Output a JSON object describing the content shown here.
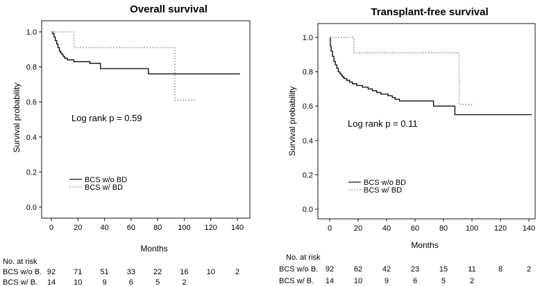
{
  "chart_data": [
    {
      "type": "line",
      "title": "Overall survival",
      "xlabel": "Months",
      "ylabel": "Survival probability",
      "xlim": [
        0,
        145
      ],
      "ylim": [
        0,
        1.0
      ],
      "xticks": [
        "0",
        "20",
        "40",
        "60",
        "80",
        "100",
        "120",
        "140"
      ],
      "yticks": [
        "0.0",
        "0.2",
        "0.4",
        "0.6",
        "0.8",
        "1.0"
      ],
      "annotation": "Log rank p = 0.59",
      "legend_position": "bottom-left",
      "series": [
        {
          "name": "BCS w/o BD",
          "style": "solid",
          "color": "#111111",
          "points": [
            [
              0,
              1.0
            ],
            [
              1,
              0.99
            ],
            [
              2,
              0.97
            ],
            [
              3,
              0.95
            ],
            [
              4,
              0.93
            ],
            [
              5,
              0.91
            ],
            [
              6,
              0.89
            ],
            [
              7,
              0.88
            ],
            [
              8,
              0.87
            ],
            [
              9,
              0.86
            ],
            [
              10,
              0.85
            ],
            [
              12,
              0.84
            ],
            [
              16,
              0.84
            ],
            [
              17,
              0.83
            ],
            [
              28,
              0.83
            ],
            [
              29,
              0.82
            ],
            [
              36,
              0.82
            ],
            [
              37,
              0.79
            ],
            [
              72,
              0.79
            ],
            [
              73,
              0.76
            ],
            [
              142,
              0.76
            ]
          ]
        },
        {
          "name": "BCS w/ BD",
          "style": "dotted",
          "color": "#999999",
          "points": [
            [
              0,
              1.0
            ],
            [
              16,
              1.0
            ],
            [
              17,
              0.91
            ],
            [
              92,
              0.91
            ],
            [
              93,
              0.61
            ],
            [
              109,
              0.61
            ]
          ]
        }
      ]
    },
    {
      "type": "line",
      "title": "Transplant-free survival",
      "xlabel": "Months",
      "ylabel": "Survival probability",
      "xlim": [
        0,
        145
      ],
      "ylim": [
        0,
        1.0
      ],
      "xticks": [
        "0",
        "20",
        "40",
        "60",
        "80",
        "100",
        "120",
        "140"
      ],
      "yticks": [
        "0.0",
        "0.2",
        "0.4",
        "0.6",
        "0.8",
        "1.0"
      ],
      "annotation": "Log rank p = 0.11",
      "legend_position": "bottom-left",
      "series": [
        {
          "name": "BCS w/o BD",
          "style": "solid",
          "color": "#111111",
          "points": [
            [
              0,
              1.0
            ],
            [
              0.5,
              0.95
            ],
            [
              1,
              0.92
            ],
            [
              2,
              0.89
            ],
            [
              3,
              0.86
            ],
            [
              4,
              0.84
            ],
            [
              5,
              0.82
            ],
            [
              6,
              0.8
            ],
            [
              7,
              0.79
            ],
            [
              8,
              0.78
            ],
            [
              9,
              0.77
            ],
            [
              10,
              0.76
            ],
            [
              12,
              0.75
            ],
            [
              14,
              0.74
            ],
            [
              16,
              0.73
            ],
            [
              19,
              0.72
            ],
            [
              23,
              0.71
            ],
            [
              27,
              0.7
            ],
            [
              30,
              0.69
            ],
            [
              33,
              0.68
            ],
            [
              36,
              0.67
            ],
            [
              40,
              0.67
            ],
            [
              41,
              0.66
            ],
            [
              44,
              0.65
            ],
            [
              46,
              0.64
            ],
            [
              48,
              0.64
            ],
            [
              49,
              0.63
            ],
            [
              72,
              0.63
            ],
            [
              73,
              0.6
            ],
            [
              87,
              0.6
            ],
            [
              88,
              0.55
            ],
            [
              142,
              0.55
            ]
          ]
        },
        {
          "name": "BCS w/ BD",
          "style": "dotted",
          "color": "#999999",
          "points": [
            [
              0,
              1.0
            ],
            [
              16,
              1.0
            ],
            [
              17,
              0.91
            ],
            [
              90,
              0.91
            ],
            [
              91,
              0.61
            ],
            [
              101,
              0.61
            ]
          ]
        }
      ]
    }
  ],
  "risk_tables": [
    {
      "header": "No. at risk",
      "rows": [
        {
          "label": "BCS w/o B.",
          "values": [
            "92",
            "71",
            "51",
            "33",
            "22",
            "16",
            "10",
            "2"
          ]
        },
        {
          "label": "BCS w/ B.",
          "values": [
            "14",
            "10",
            "9",
            "6",
            "5",
            "2"
          ]
        }
      ]
    },
    {
      "header": "No. at risk",
      "rows": [
        {
          "label": "BCS w/o B.",
          "values": [
            "92",
            "62",
            "42",
            "23",
            "15",
            "11",
            "8",
            "2"
          ]
        },
        {
          "label": "BCS w/ B.",
          "values": [
            "14",
            "10",
            "9",
            "6",
            "5",
            "2"
          ]
        }
      ]
    }
  ]
}
